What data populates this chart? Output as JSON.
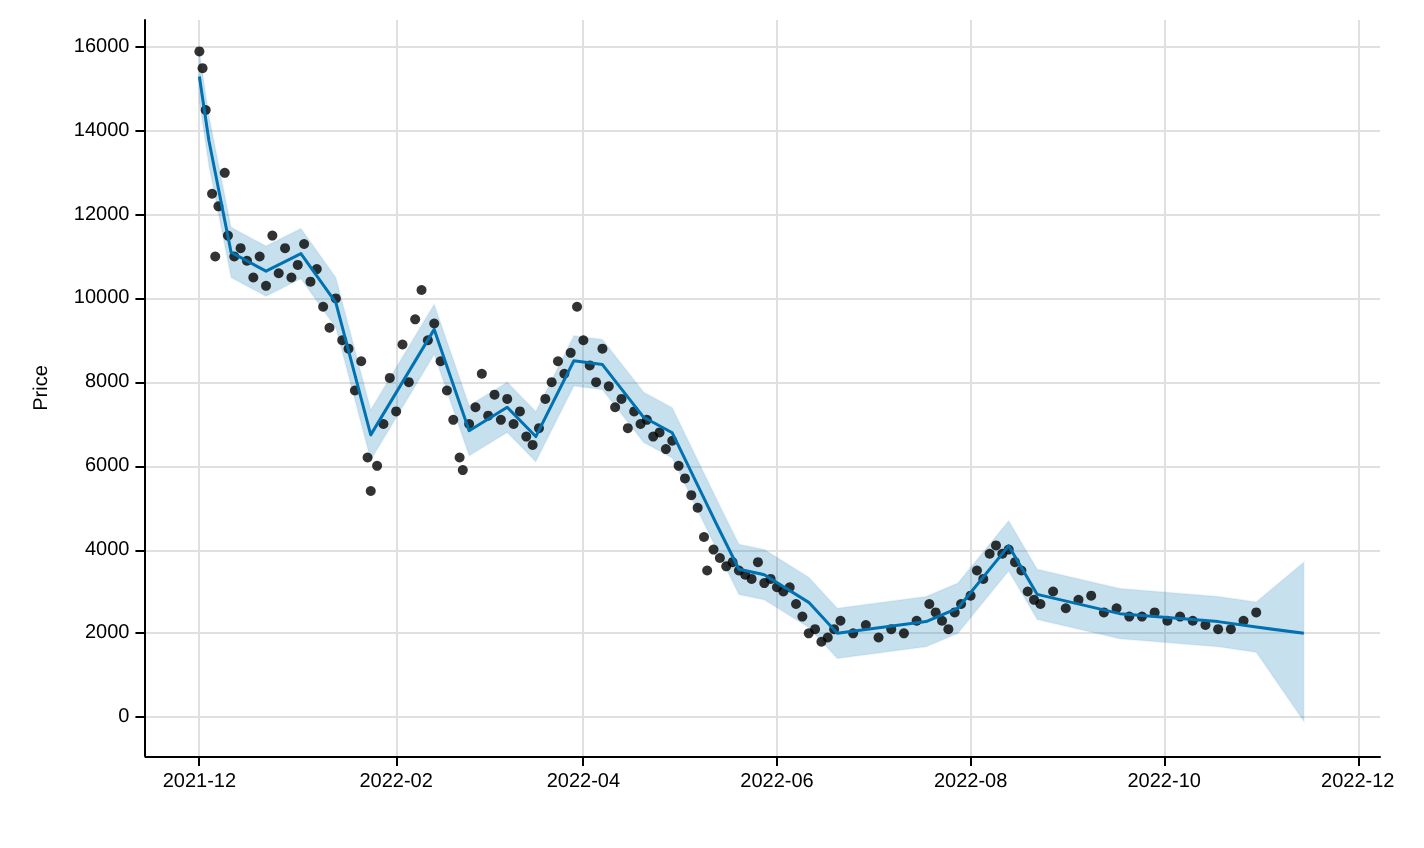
{
  "chart_data": {
    "type": "scatter",
    "ylabel": "Price",
    "grid": true,
    "xlim": [
      "2021-11-14",
      "2022-12-08"
    ],
    "ylim": [
      -930,
      16650
    ],
    "xticks": [
      "2021-12",
      "2022-02",
      "2022-04",
      "2022-06",
      "2022-08",
      "2022-10",
      "2022-12"
    ],
    "yticks": [
      0,
      2000,
      4000,
      6000,
      8000,
      10000,
      12000,
      14000,
      16000
    ],
    "series": [
      {
        "color": "#000000",
        "marker": "circle",
        "x": [
          "2021-12-01",
          "2021-12-02",
          "2021-12-03",
          "2021-12-05",
          "2021-12-06",
          "2021-12-07",
          "2021-12-09",
          "2021-12-10",
          "2021-12-12",
          "2021-12-14",
          "2021-12-16",
          "2021-12-18",
          "2021-12-20",
          "2021-12-22",
          "2021-12-24",
          "2021-12-26",
          "2021-12-28",
          "2021-12-30",
          "2022-01-01",
          "2022-01-03",
          "2022-01-05",
          "2022-01-07",
          "2022-01-09",
          "2022-01-11",
          "2022-01-13",
          "2022-01-15",
          "2022-01-17",
          "2022-01-19",
          "2022-01-21",
          "2022-01-23",
          "2022-01-24",
          "2022-01-26",
          "2022-01-28",
          "2022-01-30",
          "2022-02-01",
          "2022-02-03",
          "2022-02-05",
          "2022-02-07",
          "2022-02-09",
          "2022-02-11",
          "2022-02-13",
          "2022-02-15",
          "2022-02-17",
          "2022-02-19",
          "2022-02-21",
          "2022-02-22",
          "2022-02-24",
          "2022-02-26",
          "2022-02-28",
          "2022-03-02",
          "2022-03-04",
          "2022-03-06",
          "2022-03-08",
          "2022-03-10",
          "2022-03-12",
          "2022-03-14",
          "2022-03-16",
          "2022-03-18",
          "2022-03-20",
          "2022-03-22",
          "2022-03-24",
          "2022-03-26",
          "2022-03-28",
          "2022-03-30",
          "2022-04-01",
          "2022-04-03",
          "2022-04-05",
          "2022-04-07",
          "2022-04-09",
          "2022-04-11",
          "2022-04-13",
          "2022-04-15",
          "2022-04-17",
          "2022-04-19",
          "2022-04-21",
          "2022-04-23",
          "2022-04-25",
          "2022-04-27",
          "2022-04-29",
          "2022-05-01",
          "2022-05-03",
          "2022-05-05",
          "2022-05-07",
          "2022-05-09",
          "2022-05-10",
          "2022-05-12",
          "2022-05-14",
          "2022-05-16",
          "2022-05-18",
          "2022-05-20",
          "2022-05-22",
          "2022-05-24",
          "2022-05-26",
          "2022-05-28",
          "2022-05-30",
          "2022-06-01",
          "2022-06-03",
          "2022-06-05",
          "2022-06-07",
          "2022-06-09",
          "2022-06-11",
          "2022-06-13",
          "2022-06-15",
          "2022-06-17",
          "2022-06-19",
          "2022-06-21",
          "2022-06-25",
          "2022-06-29",
          "2022-07-03",
          "2022-07-07",
          "2022-07-11",
          "2022-07-15",
          "2022-07-19",
          "2022-07-21",
          "2022-07-23",
          "2022-07-25",
          "2022-07-27",
          "2022-07-29",
          "2022-08-01",
          "2022-08-03",
          "2022-08-05",
          "2022-08-07",
          "2022-08-09",
          "2022-08-11",
          "2022-08-13",
          "2022-08-15",
          "2022-08-17",
          "2022-08-19",
          "2022-08-21",
          "2022-08-23",
          "2022-08-27",
          "2022-08-31",
          "2022-09-04",
          "2022-09-08",
          "2022-09-12",
          "2022-09-16",
          "2022-09-20",
          "2022-09-24",
          "2022-09-28",
          "2022-10-02",
          "2022-10-06",
          "2022-10-10",
          "2022-10-14",
          "2022-10-18",
          "2022-10-22",
          "2022-10-26",
          "2022-10-30"
        ],
        "values": [
          15900,
          15500,
          14500,
          12500,
          11000,
          12200,
          13000,
          11500,
          11000,
          11200,
          10900,
          10500,
          11000,
          10300,
          11500,
          10600,
          11200,
          10500,
          10800,
          11300,
          10400,
          10700,
          9800,
          9300,
          10000,
          9000,
          8800,
          7800,
          8500,
          6200,
          5400,
          6000,
          7000,
          8100,
          7300,
          8900,
          8000,
          9500,
          10200,
          9000,
          9400,
          8500,
          7800,
          7100,
          6200,
          5900,
          7000,
          7400,
          8200,
          7200,
          7700,
          7100,
          7600,
          7000,
          7300,
          6700,
          6500,
          6900,
          7600,
          8000,
          8500,
          8200,
          8700,
          9800,
          9000,
          8400,
          8000,
          8800,
          7900,
          7400,
          7600,
          6900,
          7300,
          7000,
          7100,
          6700,
          6800,
          6400,
          6600,
          6000,
          5700,
          5300,
          5000,
          4300,
          3500,
          4000,
          3800,
          3600,
          3700,
          3500,
          3400,
          3300,
          3700,
          3200,
          3300,
          3100,
          3000,
          3100,
          2700,
          2400,
          2000,
          2100,
          1800,
          1900,
          2100,
          2300,
          2000,
          2200,
          1900,
          2100,
          2000,
          2300,
          2700,
          2500,
          2300,
          2100,
          2500,
          2700,
          2900,
          3500,
          3300,
          3900,
          4100,
          3900,
          4000,
          3700,
          3500,
          3000,
          2800,
          2700,
          3000,
          2600,
          2800,
          2900,
          2500,
          2600,
          2400,
          2400,
          2500,
          2300,
          2400,
          2300,
          2200,
          2100,
          2100,
          2300,
          2500
        ]
      },
      {
        "type": "line",
        "color": "#0072b2",
        "x": [
          "2021-12-01",
          "2021-12-04",
          "2021-12-11",
          "2021-12-22",
          "2022-01-02",
          "2022-01-13",
          "2022-01-24",
          "2022-02-13",
          "2022-02-24",
          "2022-03-08",
          "2022-03-17",
          "2022-03-29",
          "2022-04-07",
          "2022-04-20",
          "2022-04-29",
          "2022-05-13",
          "2022-05-20",
          "2022-05-28",
          "2022-06-11",
          "2022-06-20",
          "2022-07-18",
          "2022-07-28",
          "2022-08-13",
          "2022-08-22",
          "2022-09-17",
          "2022-10-18",
          "2022-10-30",
          "2022-11-14"
        ],
        "values": [
          15300,
          13770,
          11100,
          10650,
          11070,
          9900,
          6740,
          9260,
          6840,
          7400,
          6700,
          8510,
          8420,
          7160,
          6790,
          4600,
          3530,
          3400,
          2740,
          2000,
          2280,
          2600,
          4090,
          2930,
          2470,
          2280,
          2150,
          2000
        ],
        "lower": [
          14700,
          13170,
          10500,
          10050,
          10470,
          9300,
          6140,
          8660,
          6240,
          6800,
          6100,
          7910,
          7820,
          6560,
          6190,
          4000,
          2930,
          2800,
          2140,
          1400,
          1680,
          2000,
          3490,
          2330,
          1870,
          1680,
          1550,
          -100
        ],
        "upper": [
          15900,
          14370,
          11700,
          11250,
          11670,
          10500,
          7340,
          9860,
          7440,
          8000,
          7300,
          9110,
          9020,
          7760,
          7390,
          5200,
          4130,
          4000,
          3340,
          2600,
          2880,
          3200,
          4690,
          3530,
          3070,
          2880,
          2750,
          3700
        ]
      }
    ]
  }
}
